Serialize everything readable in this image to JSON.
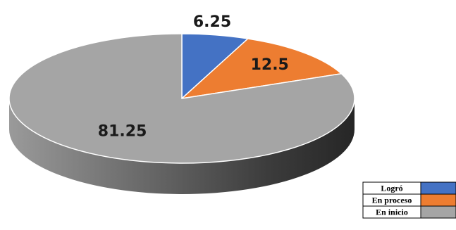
{
  "chart_data": {
    "type": "pie",
    "style": "3d",
    "categories": [
      "Logró",
      "En proceso",
      "En inicio"
    ],
    "values": [
      6.25,
      12.5,
      81.25
    ],
    "colors": [
      "#4472c4",
      "#ed7d31",
      "#a5a5a5"
    ],
    "data_labels": [
      "6.25",
      "12.5",
      "81.25"
    ],
    "legend_position": "bottom-right"
  }
}
